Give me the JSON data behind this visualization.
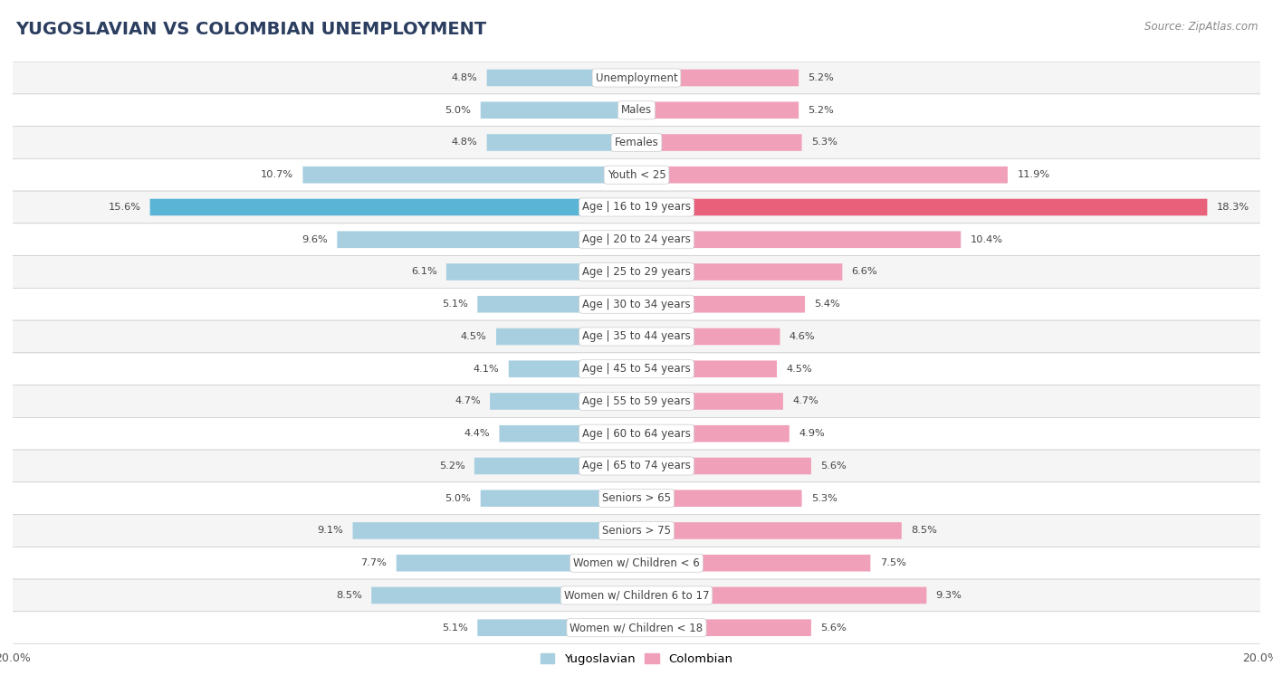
{
  "title": "YUGOSLAVIAN VS COLOMBIAN UNEMPLOYMENT",
  "source": "Source: ZipAtlas.com",
  "categories": [
    "Unemployment",
    "Males",
    "Females",
    "Youth < 25",
    "Age | 16 to 19 years",
    "Age | 20 to 24 years",
    "Age | 25 to 29 years",
    "Age | 30 to 34 years",
    "Age | 35 to 44 years",
    "Age | 45 to 54 years",
    "Age | 55 to 59 years",
    "Age | 60 to 64 years",
    "Age | 65 to 74 years",
    "Seniors > 65",
    "Seniors > 75",
    "Women w/ Children < 6",
    "Women w/ Children 6 to 17",
    "Women w/ Children < 18"
  ],
  "yugoslavian": [
    4.8,
    5.0,
    4.8,
    10.7,
    15.6,
    9.6,
    6.1,
    5.1,
    4.5,
    4.1,
    4.7,
    4.4,
    5.2,
    5.0,
    9.1,
    7.7,
    8.5,
    5.1
  ],
  "colombian": [
    5.2,
    5.2,
    5.3,
    11.9,
    18.3,
    10.4,
    6.6,
    5.4,
    4.6,
    4.5,
    4.7,
    4.9,
    5.6,
    5.3,
    8.5,
    7.5,
    9.3,
    5.6
  ],
  "yugoslavian_color": "#a8cfe0",
  "colombian_color": "#f0a0b8",
  "row_bg_odd": "#e8e8e8",
  "row_bg_even": "#f5f5f5",
  "highlight_yug_color": "#5ab4d6",
  "highlight_col_color": "#e8607a",
  "axis_max": 20.0,
  "bar_height": 0.52,
  "legend_yug": "Yugoslavian",
  "legend_col": "Colombian",
  "title_color": "#2c3e60",
  "source_color": "#888888",
  "label_color": "#444444",
  "value_color": "#444444"
}
